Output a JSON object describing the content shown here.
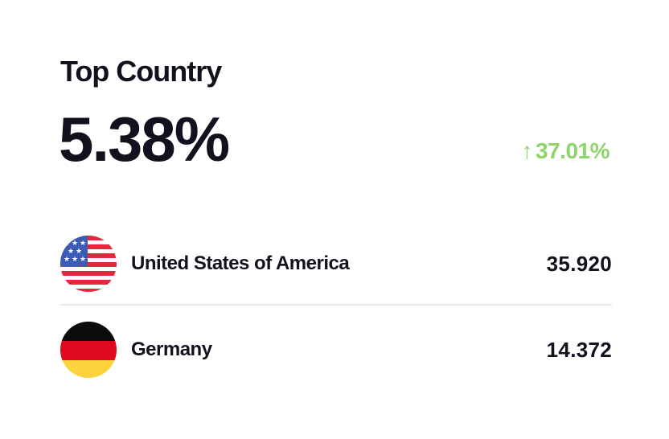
{
  "card": {
    "title": "Top Country",
    "value": "5.38%",
    "change": {
      "icon": "arrow-up-icon",
      "arrow": "↑",
      "value": "37.01%",
      "color": "#8fd46b"
    },
    "countries": [
      {
        "name": "United States of America",
        "value": "35.920",
        "flag": "us-flag-icon"
      },
      {
        "name": "Germany",
        "value": "14.372",
        "flag": "germany-flag-icon"
      }
    ]
  }
}
